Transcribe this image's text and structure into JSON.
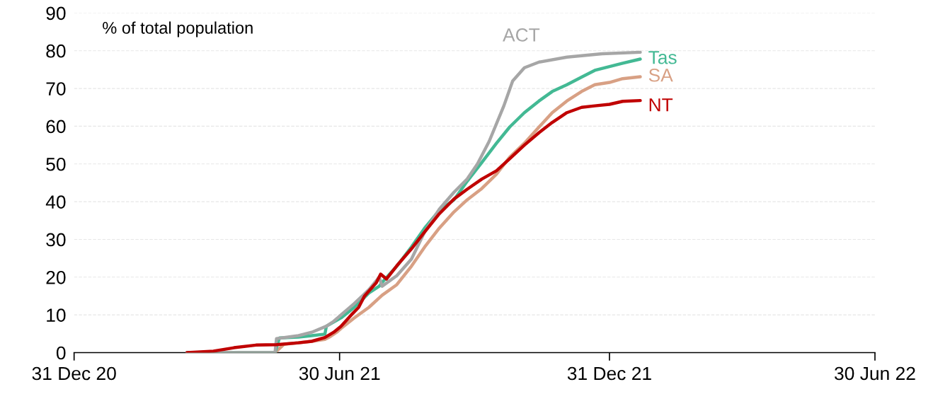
{
  "chart_data": {
    "type": "line",
    "annotations": [
      "% of total population"
    ],
    "xlim": [
      "2020-12-31",
      "2022-06-30"
    ],
    "xticks": [
      {
        "value": "2020-12-31",
        "label": "31 Dec 20"
      },
      {
        "value": "2021-06-30",
        "label": "30 Jun 21"
      },
      {
        "value": "2021-12-31",
        "label": "31 Dec 21"
      },
      {
        "value": "2022-06-30",
        "label": "30 Jun 22"
      }
    ],
    "ylim": [
      0,
      90
    ],
    "yticks": [
      0,
      10,
      20,
      30,
      40,
      50,
      60,
      70,
      80,
      90
    ],
    "grid": "y",
    "legend": false,
    "marker": "none",
    "line_style": "solid",
    "series": [
      {
        "name": "NT",
        "color": "#c00000",
        "x": [
          "2021-03-18",
          "2021-04-05",
          "2021-04-19",
          "2021-05-04",
          "2021-05-18",
          "2021-06-02",
          "2021-06-11",
          "2021-06-20",
          "2021-06-26",
          "2021-07-01",
          "2021-07-08",
          "2021-07-13",
          "2021-07-17",
          "2021-07-25",
          "2021-07-28",
          "2021-08-01",
          "2021-08-08",
          "2021-08-18",
          "2021-08-27",
          "2021-09-06",
          "2021-09-16",
          "2021-09-25",
          "2021-10-05",
          "2021-10-15",
          "2021-10-24",
          "2021-11-03",
          "2021-11-13",
          "2021-11-22",
          "2021-12-02",
          "2021-12-12",
          "2021-12-21",
          "2021-12-31",
          "2022-01-09",
          "2022-01-21"
        ],
        "values": [
          0,
          0.4,
          1.3,
          2,
          2.1,
          2.6,
          3,
          4,
          5.4,
          7,
          10,
          12,
          15,
          18.5,
          20.8,
          19.5,
          23,
          27.5,
          32,
          36.8,
          40.7,
          43.3,
          46,
          48.2,
          51.4,
          55,
          58.3,
          61,
          63.6,
          65,
          65.4,
          65.8,
          66.6,
          66.8
        ]
      },
      {
        "name": "SA",
        "color": "#d8a084",
        "x": [
          "2021-03-18",
          "2021-05-17",
          "2021-05-23",
          "2021-06-11",
          "2021-06-20",
          "2021-06-23",
          "2021-06-28",
          "2021-07-01",
          "2021-07-10",
          "2021-07-20",
          "2021-07-29",
          "2021-08-08",
          "2021-08-18",
          "2021-08-27",
          "2021-09-06",
          "2021-09-16",
          "2021-09-25",
          "2021-10-05",
          "2021-10-15",
          "2021-10-24",
          "2021-11-03",
          "2021-11-13",
          "2021-11-22",
          "2021-12-02",
          "2021-12-12",
          "2021-12-21",
          "2021-12-31",
          "2022-01-09",
          "2022-01-21"
        ],
        "values": [
          0,
          0,
          2.2,
          3,
          3.5,
          4.1,
          5.4,
          6.4,
          9.2,
          12,
          15.2,
          18,
          22.9,
          28,
          33,
          37.3,
          40.5,
          43.5,
          47.3,
          51.8,
          55.5,
          59.8,
          63.6,
          66.7,
          69.2,
          71,
          71.6,
          72.6,
          73.1
        ]
      },
      {
        "name": "Tas",
        "color": "#43b994",
        "x": [
          "2021-03-18",
          "2021-05-17",
          "2021-05-20",
          "2021-06-02",
          "2021-06-11",
          "2021-06-20",
          "2021-06-21",
          "2021-07-01",
          "2021-07-10",
          "2021-07-20",
          "2021-07-27",
          "2021-07-29",
          "2021-08-08",
          "2021-08-18",
          "2021-08-27",
          "2021-09-06",
          "2021-09-16",
          "2021-09-25",
          "2021-10-05",
          "2021-10-15",
          "2021-10-24",
          "2021-11-03",
          "2021-11-13",
          "2021-11-22",
          "2021-12-02",
          "2021-12-12",
          "2021-12-21",
          "2021-12-31",
          "2022-01-09",
          "2022-01-21"
        ],
        "values": [
          0,
          0,
          3.9,
          4.1,
          4.5,
          4.9,
          7,
          9.2,
          12,
          15.8,
          17.6,
          18.6,
          22.9,
          28,
          33,
          37.7,
          40.5,
          45.4,
          50.4,
          55.5,
          59.8,
          63.6,
          66.7,
          69.2,
          71,
          73,
          74.8,
          75.8,
          76.7,
          77.8
        ]
      },
      {
        "name": "ACT",
        "color": "#a6a6a6",
        "x": [
          "2021-03-18",
          "2021-05-17",
          "2021-05-18",
          "2021-06-02",
          "2021-06-11",
          "2021-06-21",
          "2021-06-26",
          "2021-07-01",
          "2021-07-10",
          "2021-07-20",
          "2021-07-27",
          "2021-07-29",
          "2021-08-08",
          "2021-08-18",
          "2021-08-27",
          "2021-09-06",
          "2021-09-16",
          "2021-09-25",
          "2021-10-02",
          "2021-10-10",
          "2021-10-20",
          "2021-10-26",
          "2021-11-03",
          "2021-11-13",
          "2021-12-02",
          "2021-12-26",
          "2022-01-21"
        ],
        "values": [
          0,
          0,
          3.7,
          4.5,
          5.4,
          7,
          8.3,
          10,
          13,
          16.7,
          20,
          17.6,
          20.4,
          24.8,
          32,
          38,
          42.5,
          46,
          50,
          56,
          65.4,
          72,
          75.5,
          77,
          78.3,
          79.2,
          79.6
        ]
      }
    ]
  }
}
